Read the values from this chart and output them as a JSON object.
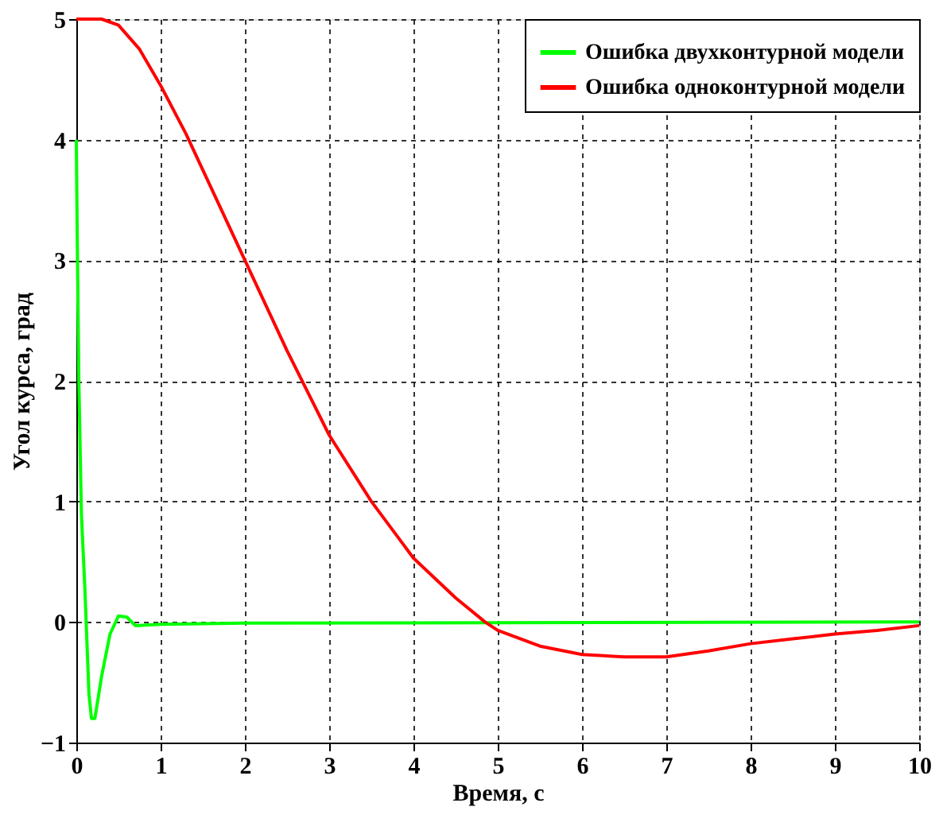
{
  "chart_data": {
    "type": "line",
    "xlabel": "Время, с",
    "ylabel": "Угол курса, град",
    "xlim": [
      0,
      10
    ],
    "ylim": [
      -1,
      5
    ],
    "xticks": [
      0,
      1,
      2,
      3,
      4,
      5,
      6,
      7,
      8,
      9,
      10
    ],
    "yticks": [
      -1,
      0,
      1,
      2,
      3,
      4,
      5
    ],
    "grid": true,
    "legend": "top right",
    "line_style": "solid",
    "marker": "none",
    "series": [
      {
        "name": "Ошибка двухконтурной модели",
        "color": "#00ff00",
        "x": [
          0,
          0.01,
          0.03,
          0.06,
          0.1,
          0.15,
          0.18,
          0.22,
          0.3,
          0.4,
          0.5,
          0.6,
          0.7,
          1,
          2,
          10
        ],
        "values": [
          4,
          3.25,
          2,
          0.9,
          0.3,
          -0.6,
          -0.8,
          -0.8,
          -0.45,
          -0.1,
          0.05,
          0.04,
          -0.03,
          -0.02,
          -0.01,
          0
        ]
      },
      {
        "name": "Ошибка одноконтурной модели",
        "color": "#ff0000",
        "x": [
          0,
          0.3,
          0.5,
          0.75,
          1,
          1.3,
          1.5,
          2,
          2.5,
          3,
          3.5,
          4,
          4.5,
          4.85,
          5,
          5.5,
          6,
          6.5,
          7,
          7.5,
          8,
          8.5,
          9,
          9.5,
          10
        ],
        "values": [
          5,
          5,
          4.95,
          4.75,
          4.45,
          4.05,
          3.75,
          3.0,
          2.25,
          1.55,
          1.0,
          0.53,
          0.2,
          0,
          -0.07,
          -0.2,
          -0.27,
          -0.29,
          -0.29,
          -0.24,
          -0.18,
          -0.14,
          -0.1,
          -0.07,
          -0.03
        ]
      }
    ]
  }
}
